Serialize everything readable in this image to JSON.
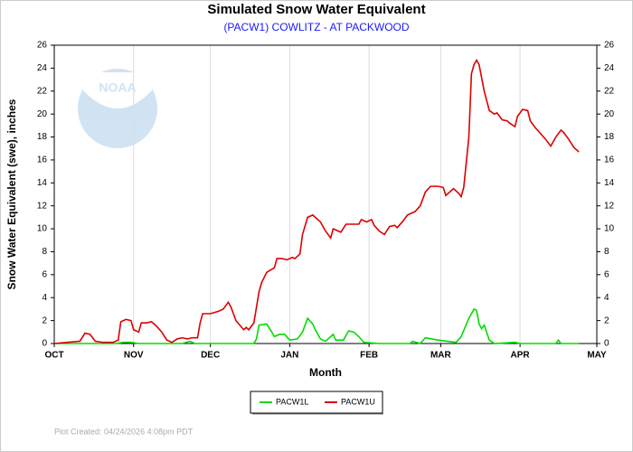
{
  "chart_data": {
    "type": "line",
    "title": "Simulated Snow Water Equivalent",
    "subtitle": "(PACW1) COWLITZ - AT PACKWOOD",
    "x_label": "Month",
    "y_label": "Snow Water Equivalent (swe),  inches",
    "footnote": "Plot Created: 04/24/2026 4:08pm PDT",
    "logo_text": "NOAA",
    "xlim": [
      0,
      212
    ],
    "xticks": [
      {
        "value": 0,
        "label": "OCT"
      },
      {
        "value": 31,
        "label": "NOV"
      },
      {
        "value": 61,
        "label": "DEC"
      },
      {
        "value": 92,
        "label": "JAN"
      },
      {
        "value": 123,
        "label": "FEB"
      },
      {
        "value": 151,
        "label": "MAR"
      },
      {
        "value": 182,
        "label": "APR"
      },
      {
        "value": 212,
        "label": "MAY"
      }
    ],
    "ylim": [
      0,
      26
    ],
    "yticks": [
      0,
      2,
      4,
      6,
      8,
      10,
      12,
      14,
      16,
      18,
      20,
      22,
      24,
      26
    ],
    "grid": true,
    "legend": "bottom",
    "series": [
      {
        "name": "PACW1L",
        "color": "#00dd00",
        "x": [
          0,
          24,
          27,
          30,
          33,
          50,
          53,
          55,
          78,
          79,
          80,
          83,
          85,
          86,
          88,
          90,
          92,
          95,
          97,
          99,
          101,
          102,
          104,
          106,
          109,
          110,
          113,
          115,
          117,
          119,
          121,
          127,
          139,
          140,
          143,
          145,
          150,
          157,
          159,
          162,
          164,
          165,
          166,
          167,
          168,
          170,
          172,
          180,
          182,
          196,
          197,
          198,
          205
        ],
        "values": [
          0,
          0,
          0.1,
          0.1,
          0,
          0,
          0.2,
          0,
          0,
          0.4,
          1.6,
          1.7,
          1.0,
          0.6,
          0.8,
          0.8,
          0.3,
          0.4,
          1.0,
          2.2,
          1.7,
          1.2,
          0.4,
          0.2,
          0.8,
          0.3,
          0.3,
          1.1,
          1.0,
          0.6,
          0.1,
          0,
          0,
          0.2,
          0,
          0.5,
          0.3,
          0.1,
          0.6,
          2.2,
          3.0,
          2.9,
          1.7,
          1.3,
          1.6,
          0.3,
          0,
          0.1,
          0,
          0,
          0.3,
          0,
          0
        ]
      },
      {
        "name": "PACW1U",
        "color": "#dd0000",
        "x": [
          0,
          10,
          12,
          14,
          16,
          19,
          23,
          25,
          26,
          28,
          30,
          31,
          33,
          34,
          36,
          38,
          40,
          42,
          44,
          46,
          48,
          50,
          52,
          54,
          56,
          57,
          58,
          61,
          64,
          66,
          68,
          69,
          71,
          74,
          75,
          76,
          78,
          80,
          81,
          83,
          86,
          87,
          89,
          91,
          93,
          94,
          96,
          97,
          99,
          101,
          104,
          106,
          108,
          109,
          111,
          112,
          114,
          117,
          119,
          120,
          122,
          124,
          125,
          127,
          129,
          131,
          133,
          134,
          136,
          138,
          141,
          143,
          145,
          147,
          150,
          152,
          153,
          155,
          156,
          158,
          159,
          160,
          162,
          163,
          164,
          165,
          166,
          168,
          170,
          172,
          173,
          175,
          177,
          178,
          180,
          181,
          183,
          185,
          186,
          188,
          190,
          192,
          194,
          196,
          198,
          199,
          201,
          203,
          205
        ],
        "values": [
          0,
          0.2,
          0.9,
          0.8,
          0.2,
          0.1,
          0.1,
          0.3,
          1.9,
          2.1,
          2.0,
          1.2,
          1.0,
          1.8,
          1.8,
          1.9,
          1.5,
          1.0,
          0.3,
          0.1,
          0.4,
          0.5,
          0.4,
          0.5,
          0.5,
          1.8,
          2.6,
          2.6,
          2.8,
          3.0,
          3.6,
          3.2,
          2.0,
          1.2,
          1.4,
          1.2,
          1.8,
          4.5,
          5.3,
          6.2,
          6.6,
          7.4,
          7.4,
          7.3,
          7.5,
          7.4,
          7.8,
          9.5,
          11.0,
          11.2,
          10.6,
          9.8,
          9.2,
          10.0,
          9.8,
          9.7,
          10.4,
          10.4,
          10.4,
          10.8,
          10.6,
          10.8,
          10.3,
          9.8,
          9.5,
          10.2,
          10.3,
          10.1,
          10.6,
          11.2,
          11.5,
          12.0,
          13.2,
          13.7,
          13.7,
          13.6,
          12.9,
          13.3,
          13.5,
          13.1,
          12.8,
          13.6,
          18.0,
          23.5,
          24.3,
          24.7,
          24.3,
          22.0,
          20.3,
          20.0,
          20.1,
          19.5,
          19.4,
          19.2,
          18.9,
          19.8,
          20.4,
          20.3,
          19.4,
          18.8,
          18.3,
          17.8,
          17.2,
          18.0,
          18.6,
          18.4,
          17.8,
          17.1,
          16.7
        ]
      }
    ]
  }
}
